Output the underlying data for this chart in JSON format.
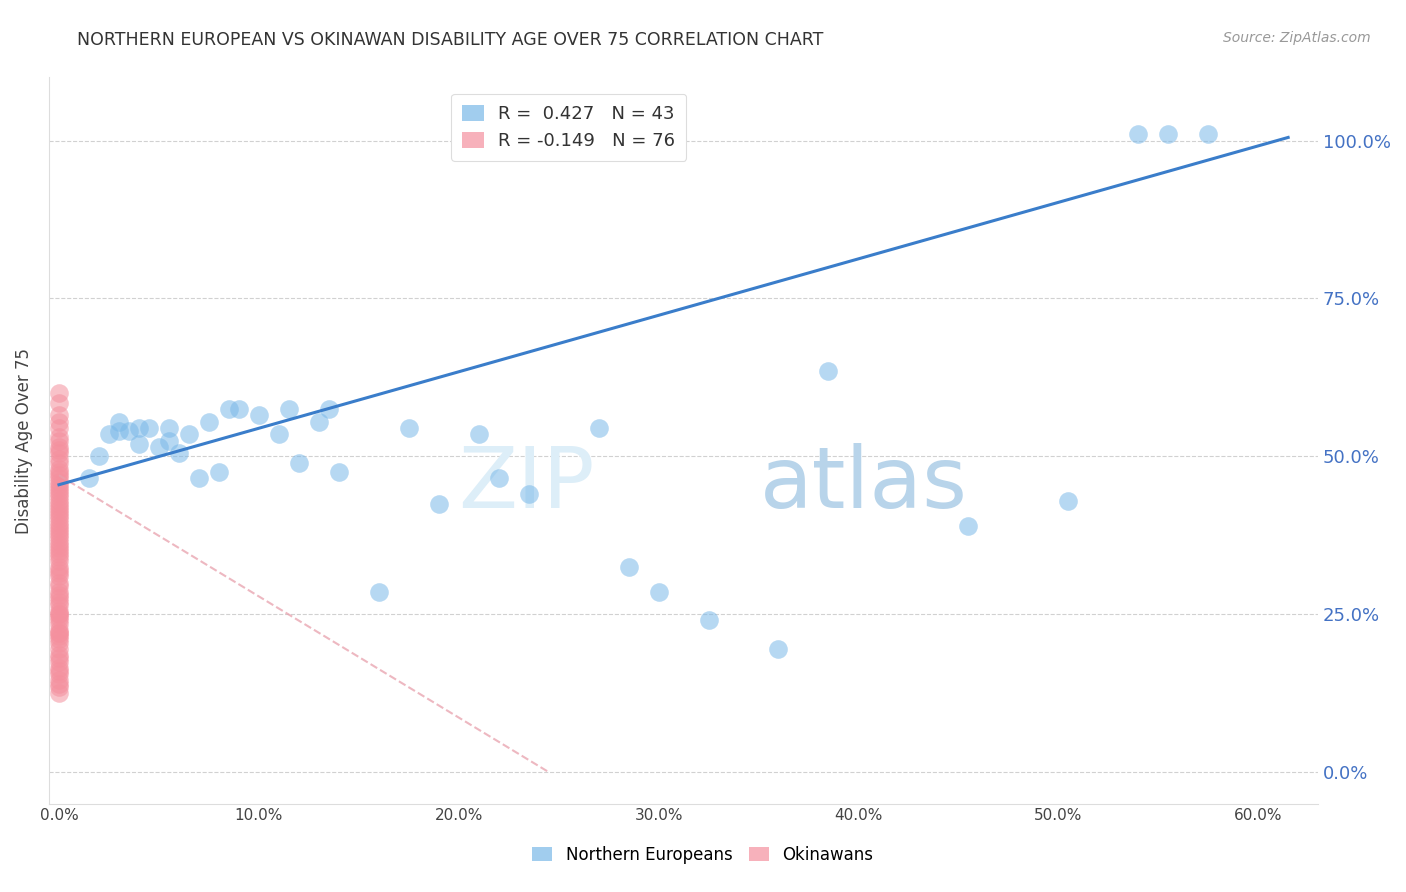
{
  "title": "NORTHERN EUROPEAN VS OKINAWAN DISABILITY AGE OVER 75 CORRELATION CHART",
  "source": "Source: ZipAtlas.com",
  "ylabel": "Disability Age Over 75",
  "blue_color": "#7ab8e8",
  "pink_color": "#f4909e",
  "trendline_blue_color": "#3a7dca",
  "trendline_pink_color": "#e8a0ac",
  "watermark_zip": "ZIP",
  "watermark_atlas": "atlas",
  "legend_blue_label": "R =  0.427   N = 43",
  "legend_pink_label": "R = -0.149   N = 76",
  "xlim": [
    -0.005,
    0.63
  ],
  "ylim": [
    -0.05,
    1.1
  ],
  "xticks": [
    0.0,
    0.1,
    0.2,
    0.3,
    0.4,
    0.5,
    0.6
  ],
  "xticklabels": [
    "0.0%",
    "10.0%",
    "20.0%",
    "30.0%",
    "40.0%",
    "50.0%",
    "60.0%"
  ],
  "yticks": [
    0.0,
    0.25,
    0.5,
    0.75,
    1.0
  ],
  "yticklabels": [
    "0.0%",
    "25.0%",
    "50.0%",
    "75.0%",
    "100.0%"
  ],
  "blue_x": [
    0.015,
    0.02,
    0.025,
    0.03,
    0.03,
    0.035,
    0.04,
    0.04,
    0.045,
    0.05,
    0.055,
    0.055,
    0.06,
    0.065,
    0.07,
    0.075,
    0.08,
    0.085,
    0.09,
    0.1,
    0.11,
    0.115,
    0.12,
    0.13,
    0.135,
    0.14,
    0.16,
    0.175,
    0.19,
    0.21,
    0.22,
    0.235,
    0.27,
    0.285,
    0.3,
    0.325,
    0.36,
    0.385,
    0.455,
    0.505,
    0.54,
    0.555,
    0.575
  ],
  "blue_y": [
    0.465,
    0.5,
    0.535,
    0.54,
    0.555,
    0.54,
    0.52,
    0.545,
    0.545,
    0.515,
    0.525,
    0.545,
    0.505,
    0.535,
    0.465,
    0.555,
    0.475,
    0.575,
    0.575,
    0.565,
    0.535,
    0.575,
    0.49,
    0.555,
    0.575,
    0.475,
    0.285,
    0.545,
    0.425,
    0.535,
    0.465,
    0.44,
    0.545,
    0.325,
    0.285,
    0.24,
    0.195,
    0.635,
    0.39,
    0.43,
    1.01,
    1.01,
    1.01
  ],
  "pink_x": [
    0.0,
    0.0,
    0.0,
    0.0,
    0.0,
    0.0,
    0.0,
    0.0,
    0.0,
    0.0,
    0.0,
    0.0,
    0.0,
    0.0,
    0.0,
    0.0,
    0.0,
    0.0,
    0.0,
    0.0,
    0.0,
    0.0,
    0.0,
    0.0,
    0.0,
    0.0,
    0.0,
    0.0,
    0.0,
    0.0,
    0.0,
    0.0,
    0.0,
    0.0,
    0.0,
    0.0,
    0.0,
    0.0,
    0.0,
    0.0,
    0.0,
    0.0,
    0.0,
    0.0,
    0.0,
    0.0,
    0.0,
    0.0,
    0.0,
    0.0,
    0.0,
    0.0,
    0.0,
    0.0,
    0.0,
    0.0,
    0.0,
    0.0,
    0.0,
    0.0,
    0.0,
    0.0,
    0.0,
    0.0,
    0.0,
    0.0,
    0.0,
    0.0,
    0.0,
    0.0,
    0.0,
    0.0,
    0.0,
    0.0,
    0.0,
    0.0
  ],
  "pink_y": [
    0.6,
    0.585,
    0.565,
    0.555,
    0.545,
    0.53,
    0.525,
    0.515,
    0.51,
    0.505,
    0.495,
    0.49,
    0.48,
    0.475,
    0.47,
    0.465,
    0.46,
    0.455,
    0.45,
    0.445,
    0.44,
    0.435,
    0.43,
    0.425,
    0.42,
    0.415,
    0.41,
    0.405,
    0.4,
    0.395,
    0.39,
    0.385,
    0.38,
    0.375,
    0.37,
    0.365,
    0.36,
    0.355,
    0.35,
    0.345,
    0.34,
    0.335,
    0.325,
    0.32,
    0.315,
    0.31,
    0.3,
    0.295,
    0.285,
    0.28,
    0.275,
    0.27,
    0.265,
    0.255,
    0.25,
    0.245,
    0.24,
    0.235,
    0.225,
    0.22,
    0.215,
    0.21,
    0.205,
    0.195,
    0.185,
    0.18,
    0.175,
    0.165,
    0.16,
    0.155,
    0.145,
    0.14,
    0.135,
    0.125,
    0.22,
    0.25
  ],
  "blue_trend_x": [
    0.0,
    0.615
  ],
  "blue_trend_y": [
    0.455,
    1.005
  ],
  "pink_trend_x": [
    0.0,
    0.245
  ],
  "pink_trend_y": [
    0.47,
    0.0
  ]
}
